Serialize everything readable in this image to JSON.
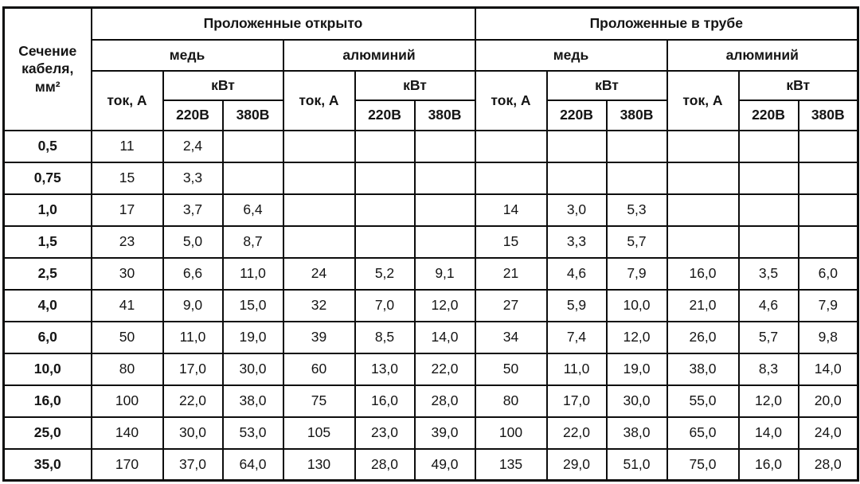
{
  "table": {
    "corner_header": "Сечение кабеля, мм²",
    "groups": [
      {
        "label": "Проложенные открыто"
      },
      {
        "label": "Проложенные в трубе"
      }
    ],
    "metals": {
      "copper": "медь",
      "aluminum": "алюминий"
    },
    "current_header": "ток, А",
    "power_header": "кВт",
    "voltage_headers": [
      "220В",
      "380В"
    ],
    "rows": [
      {
        "section": "0,5",
        "values": [
          "11",
          "2,4",
          "",
          "",
          "",
          "",
          "",
          "",
          "",
          "",
          "",
          ""
        ]
      },
      {
        "section": "0,75",
        "values": [
          "15",
          "3,3",
          "",
          "",
          "",
          "",
          "",
          "",
          "",
          "",
          "",
          ""
        ]
      },
      {
        "section": "1,0",
        "values": [
          "17",
          "3,7",
          "6,4",
          "",
          "",
          "",
          "14",
          "3,0",
          "5,3",
          "",
          "",
          ""
        ]
      },
      {
        "section": "1,5",
        "values": [
          "23",
          "5,0",
          "8,7",
          "",
          "",
          "",
          "15",
          "3,3",
          "5,7",
          "",
          "",
          ""
        ]
      },
      {
        "section": "2,5",
        "values": [
          "30",
          "6,6",
          "11,0",
          "24",
          "5,2",
          "9,1",
          "21",
          "4,6",
          "7,9",
          "16,0",
          "3,5",
          "6,0"
        ]
      },
      {
        "section": "4,0",
        "values": [
          "41",
          "9,0",
          "15,0",
          "32",
          "7,0",
          "12,0",
          "27",
          "5,9",
          "10,0",
          "21,0",
          "4,6",
          "7,9"
        ]
      },
      {
        "section": "6,0",
        "values": [
          "50",
          "11,0",
          "19,0",
          "39",
          "8,5",
          "14,0",
          "34",
          "7,4",
          "12,0",
          "26,0",
          "5,7",
          "9,8"
        ]
      },
      {
        "section": "10,0",
        "values": [
          "80",
          "17,0",
          "30,0",
          "60",
          "13,0",
          "22,0",
          "50",
          "11,0",
          "19,0",
          "38,0",
          "8,3",
          "14,0"
        ]
      },
      {
        "section": "16,0",
        "values": [
          "100",
          "22,0",
          "38,0",
          "75",
          "16,0",
          "28,0",
          "80",
          "17,0",
          "30,0",
          "55,0",
          "12,0",
          "20,0"
        ]
      },
      {
        "section": "25,0",
        "values": [
          "140",
          "30,0",
          "53,0",
          "105",
          "23,0",
          "39,0",
          "100",
          "22,0",
          "38,0",
          "65,0",
          "14,0",
          "24,0"
        ]
      },
      {
        "section": "35,0",
        "values": [
          "170",
          "37,0",
          "64,0",
          "130",
          "28,0",
          "49,0",
          "135",
          "29,0",
          "51,0",
          "75,0",
          "16,0",
          "28,0"
        ]
      }
    ]
  }
}
